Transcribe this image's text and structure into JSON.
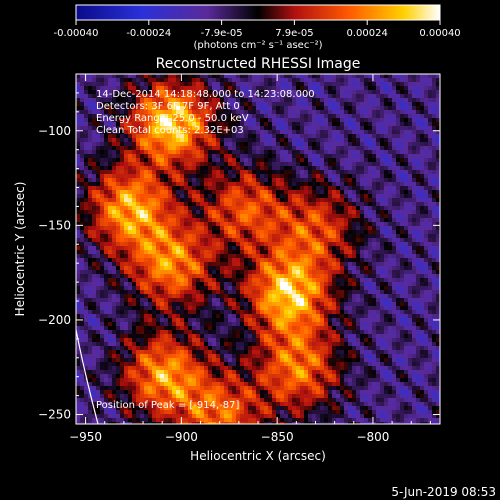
{
  "chart_data": {
    "type": "heatmap",
    "title": "Reconstructed RHESSI Image",
    "xlabel": "Heliocentric X (arcsec)",
    "ylabel": "Heliocentric Y (arcsec)",
    "xlim": [
      -955,
      -765
    ],
    "ylim": [
      -255,
      -70
    ],
    "xticks": [
      -950,
      -900,
      -850,
      -800
    ],
    "yticks": [
      -250,
      -200,
      -150,
      -100
    ],
    "colorbar": {
      "ticks": [
        "-0.00040",
        "-0.00024",
        "-7.9e-05",
        "7.9e-05",
        "0.00024",
        "0.00040"
      ],
      "units": "(photons cm⁻² s⁻¹ asec⁻²)",
      "range": [
        -0.0004,
        0.0004
      ],
      "colors": [
        "#0a0a8a",
        "#2a30d8",
        "#000000",
        "#d02018",
        "#ffb000",
        "#ffffff"
      ]
    },
    "annotations": [
      "14-Dec-2014 14:18:48.000 to 14:23:08.000",
      "Detectors: 3F 6F 7F 9F, Att 0",
      "Energy Range: 25.0 - 50.0 keV",
      "Clean    Total counts: 2.32E+03"
    ],
    "peak_label": "Position of Peak = [-914,-87]",
    "timestamp": "5-Jun-2019 08:53"
  }
}
